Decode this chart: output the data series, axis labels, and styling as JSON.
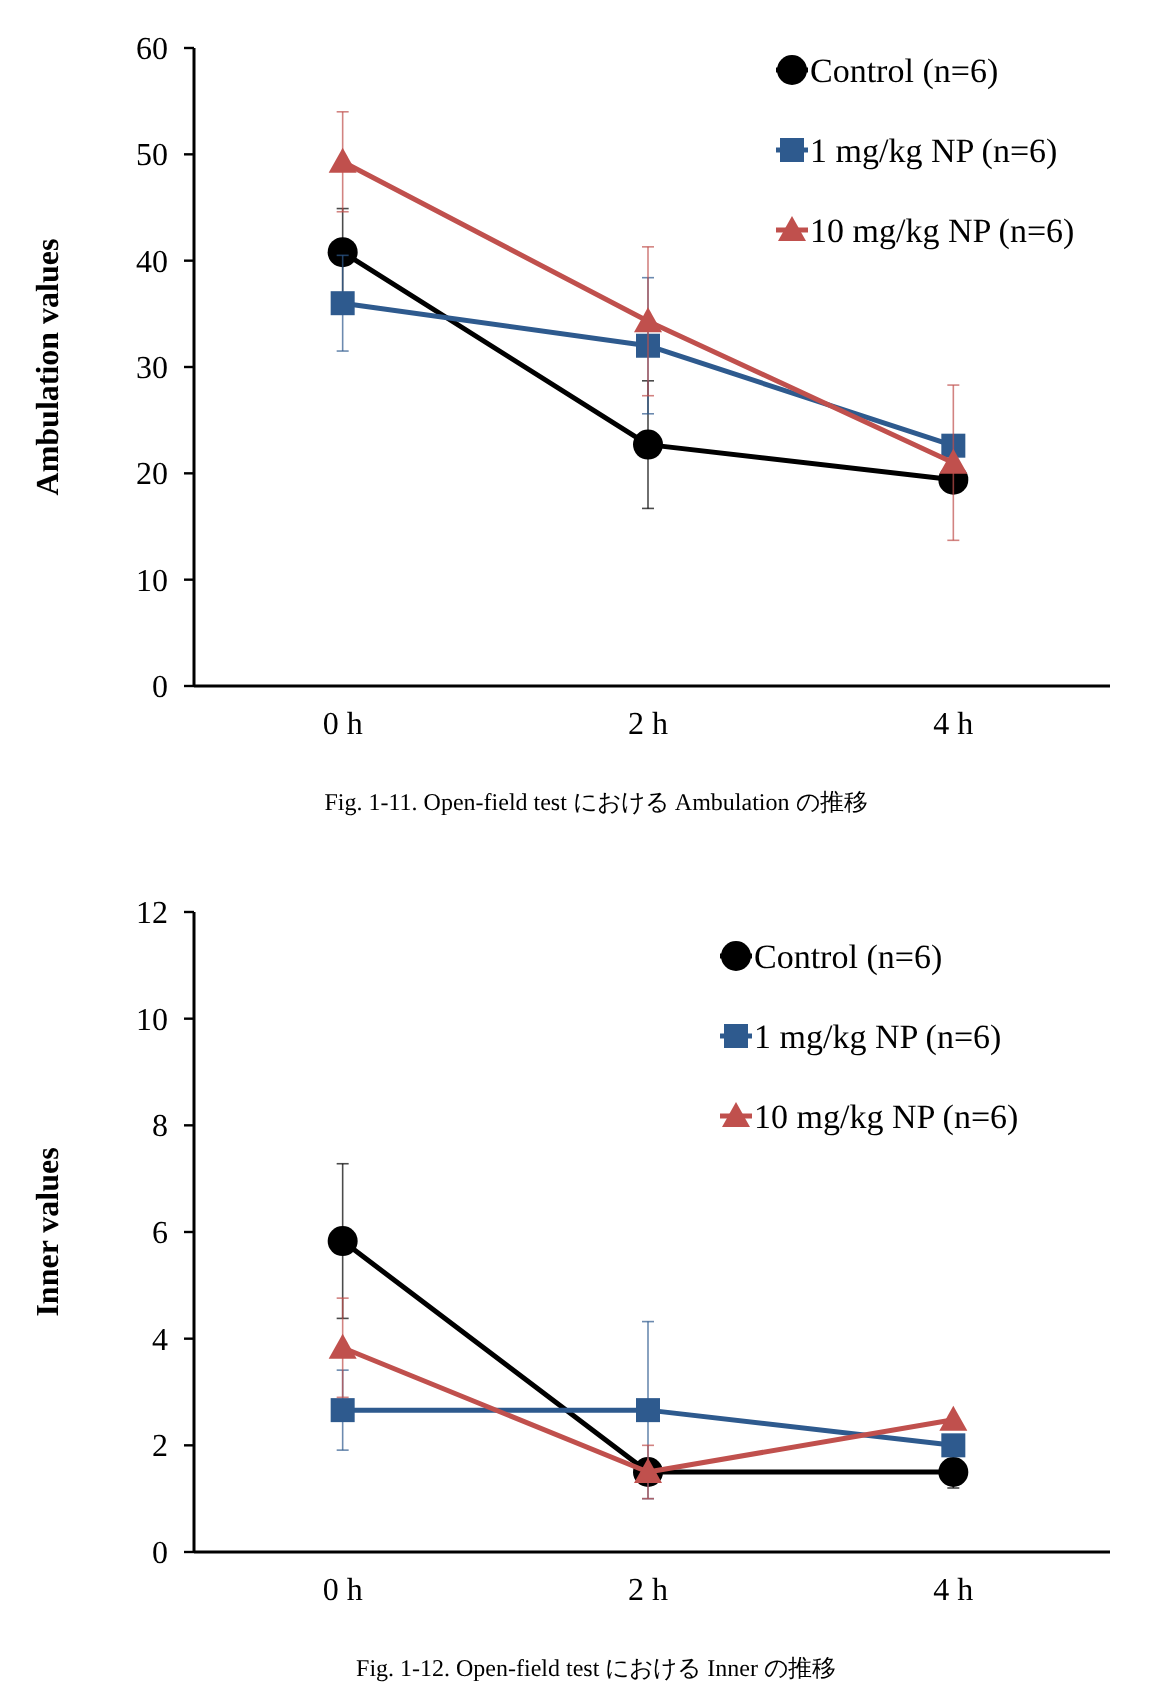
{
  "chart_data": [
    {
      "type": "line",
      "ylabel": "Ambulation values",
      "categories": [
        "0 h",
        "2 h",
        "4 h"
      ],
      "ylim": [
        0,
        60
      ],
      "yticks": [
        0,
        10,
        20,
        30,
        40,
        50,
        60
      ],
      "grid": false,
      "legend": "top right",
      "line_style": "solid",
      "annotations": [
        "Fig. 1-11. Open-field test における Ambulation の推移"
      ],
      "series": [
        {
          "name": "Control (n=6)",
          "color": "#000000",
          "marker": "circle",
          "values": [
            40.8,
            22.7,
            19.4
          ],
          "errors": [
            4.1,
            6.0,
            null
          ]
        },
        {
          "name": "1 mg/kg NP (n=6)",
          "color": "#2e5a8e",
          "marker": "square",
          "values": [
            36.0,
            32.0,
            22.6
          ],
          "errors": [
            4.5,
            6.4,
            null
          ]
        },
        {
          "name": "10 mg/kg NP (n=6)",
          "color": "#c0504d",
          "marker": "triangle",
          "values": [
            49.3,
            34.3,
            21.0
          ],
          "errors": [
            4.7,
            7.0,
            7.3
          ]
        }
      ]
    },
    {
      "type": "line",
      "ylabel": "Inner values",
      "categories": [
        "0 h",
        "2 h",
        "4 h"
      ],
      "ylim": [
        0,
        12
      ],
      "yticks": [
        0,
        2,
        4,
        6,
        8,
        10,
        12
      ],
      "grid": false,
      "legend": "top right",
      "line_style": "solid",
      "annotations": [
        "Fig. 1-12. Open-field test における Inner の推移"
      ],
      "series": [
        {
          "name": "Control (n=6)",
          "color": "#000000",
          "marker": "circle",
          "values": [
            5.83,
            1.5,
            1.5
          ],
          "errors": [
            1.45,
            null,
            0.3
          ]
        },
        {
          "name": "1 mg/kg NP (n=6)",
          "color": "#2e5a8e",
          "marker": "square",
          "values": [
            2.66,
            2.66,
            2.0
          ],
          "errors": [
            0.75,
            1.66,
            null
          ]
        },
        {
          "name": "10 mg/kg NP (n=6)",
          "color": "#c0504d",
          "marker": "triangle",
          "values": [
            3.83,
            1.5,
            2.48
          ],
          "errors": [
            0.93,
            0.5,
            null
          ]
        }
      ]
    }
  ]
}
